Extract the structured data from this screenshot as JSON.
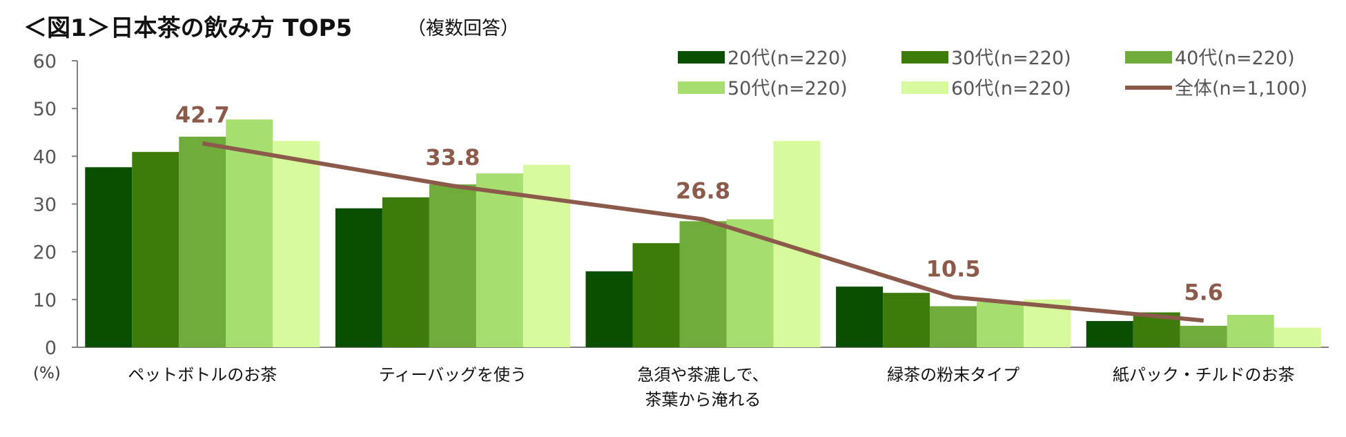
{
  "chart_data": {
    "type": "bar",
    "title": "＜図1＞日本茶の飲み方 TOP5",
    "subtitle": "（複数回答）",
    "y_unit": "(%)",
    "ylim": [
      0,
      60
    ],
    "yticks": [
      0,
      10,
      20,
      30,
      40,
      50,
      60
    ],
    "categories": [
      [
        "ペットボトルのお茶"
      ],
      [
        "ティーバッグを使う"
      ],
      [
        "急須や茶漉しで、",
        "茶葉から淹れる"
      ],
      [
        "緑茶の粉末タイプ"
      ],
      [
        "紙パック・チルドのお茶"
      ]
    ],
    "series": [
      {
        "name": "20代(n=220)",
        "color": "#0a4f00",
        "values": [
          37.7,
          29.1,
          15.9,
          12.7,
          5.5
        ]
      },
      {
        "name": "30代(n=220)",
        "color": "#3d7b0b",
        "values": [
          40.9,
          31.4,
          21.8,
          11.4,
          7.3
        ]
      },
      {
        "name": "40代(n=220)",
        "color": "#6fac3b",
        "values": [
          44.1,
          34.1,
          26.4,
          8.6,
          4.5
        ]
      },
      {
        "name": "50代(n=220)",
        "color": "#a6de6f",
        "values": [
          47.7,
          36.4,
          26.8,
          9.5,
          6.8
        ]
      },
      {
        "name": "60代(n=220)",
        "color": "#d7fb9c",
        "values": [
          43.2,
          38.2,
          43.2,
          10.0,
          4.1
        ]
      }
    ],
    "line": {
      "name": "全体(n=1,100)",
      "color": "#8b5a4a",
      "values": [
        42.7,
        33.8,
        26.8,
        10.5,
        5.6
      ],
      "labels": [
        "42.7",
        "33.8",
        "26.8",
        "10.5",
        "5.6"
      ]
    },
    "legend_position": "top-right",
    "grid": false
  }
}
